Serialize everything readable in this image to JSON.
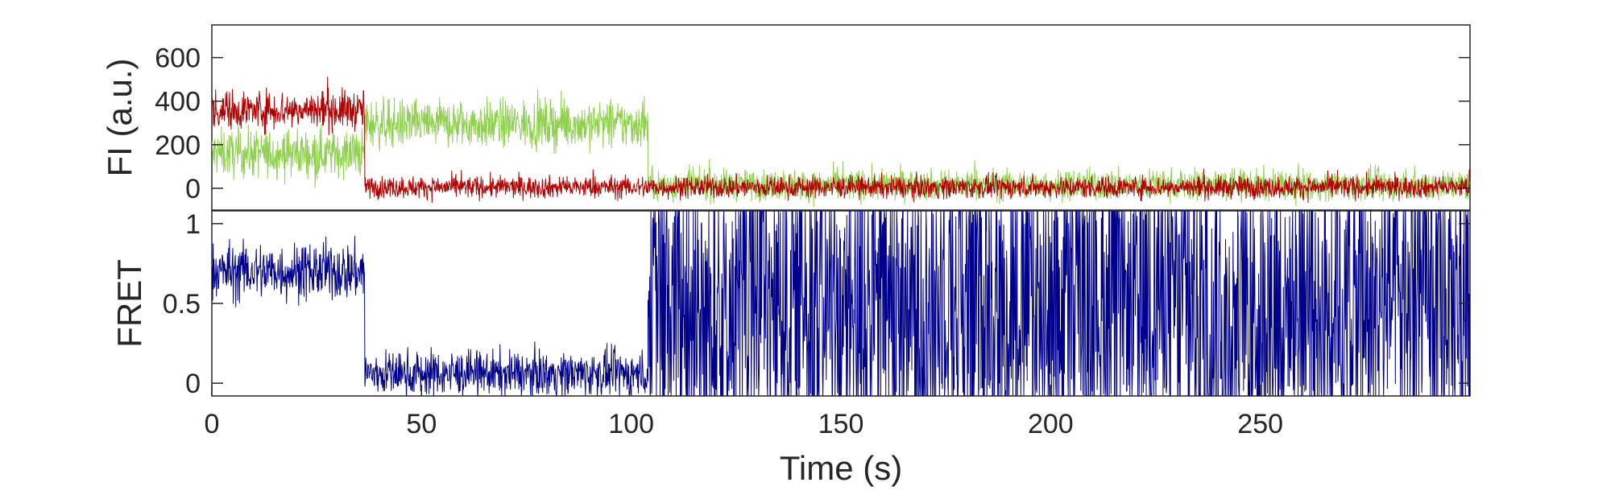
{
  "colors": {
    "donor": "#8fd14f",
    "acceptor": "#b30000",
    "fret": "#00008b",
    "axis": "#262626"
  },
  "chart_data": [
    {
      "type": "line",
      "panel": "top",
      "xlabel": "",
      "ylabel": "FI (a.u.)",
      "xlim": [
        0,
        300
      ],
      "ylim": [
        -100,
        750
      ],
      "yticks": [
        0,
        200,
        400,
        600
      ],
      "ytick_labels": [
        "0",
        "200",
        "400",
        "600"
      ],
      "grid": false,
      "series": [
        {
          "color": "#8fd14f",
          "segments": [
            {
              "t": [
                0,
                36.5
              ],
              "mean": 160,
              "noise": 55
            },
            {
              "t": [
                36.5,
                104
              ],
              "mean": 295,
              "noise": 55
            },
            {
              "t": [
                104,
                300
              ],
              "mean": 15,
              "noise": 35
            }
          ]
        },
        {
          "color": "#b30000",
          "segments": [
            {
              "t": [
                0,
                36.5
              ],
              "mean": 360,
              "noise": 45
            },
            {
              "t": [
                36.5,
                104
              ],
              "mean": 5,
              "noise": 25
            },
            {
              "t": [
                104,
                300
              ],
              "mean": 5,
              "noise": 25
            }
          ]
        }
      ]
    },
    {
      "type": "line",
      "panel": "bottom",
      "xlabel": "Time (s)",
      "ylabel": "FRET",
      "xlim": [
        0,
        300
      ],
      "ylim": [
        -0.08,
        1.08
      ],
      "xticks": [
        0,
        50,
        100,
        150,
        200,
        250
      ],
      "xtick_labels": [
        "0",
        "50",
        "100",
        "150",
        "200",
        "250"
      ],
      "yticks": [
        0,
        0.5,
        1
      ],
      "ytick_labels": [
        "0",
        "0.5",
        "1"
      ],
      "grid": false,
      "series": [
        {
          "color": "#00008b",
          "segments": [
            {
              "t": [
                0,
                36.5
              ],
              "mean": 0.7,
              "noise": 0.09
            },
            {
              "t": [
                36.5,
                104
              ],
              "mean": 0.06,
              "noise": 0.07
            },
            {
              "t": [
                104,
                300
              ],
              "mean": 0.5,
              "noise": 0.5,
              "clip": [
                -0.08,
                1.08
              ],
              "flicker": true
            }
          ]
        }
      ]
    }
  ]
}
